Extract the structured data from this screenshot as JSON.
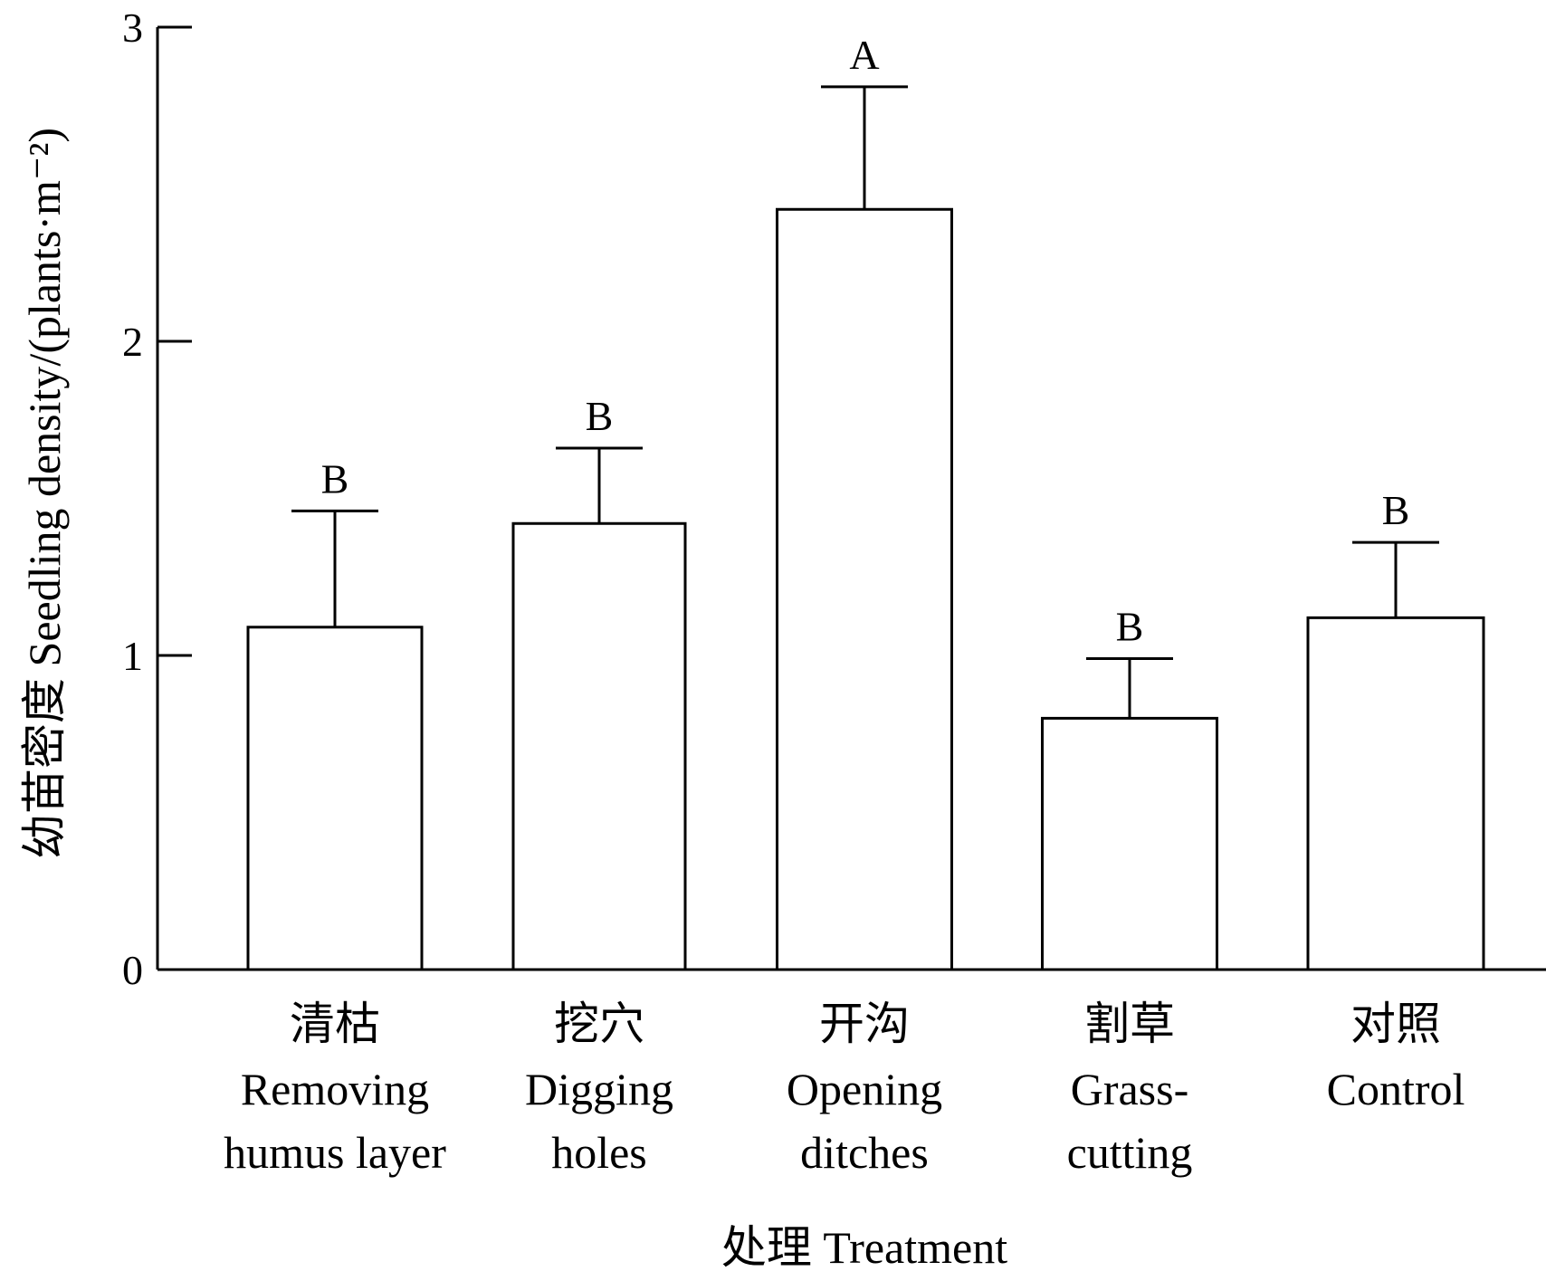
{
  "chart_data": {
    "type": "bar",
    "title": "",
    "ylabel": "幼苗密度  Seedling density/(plants·m⁻²)",
    "xlabel": "处理  Treatment",
    "ylim": [
      0,
      3
    ],
    "yticks": [
      0,
      1,
      2,
      3
    ],
    "categories": [
      {
        "zh": "清枯",
        "en": [
          "Removing",
          "humus layer"
        ]
      },
      {
        "zh": "挖穴",
        "en": [
          "Digging",
          "holes"
        ]
      },
      {
        "zh": "开沟",
        "en": [
          "Opening",
          "ditches"
        ]
      },
      {
        "zh": "割草",
        "en": [
          "Grass-",
          "cutting"
        ]
      },
      {
        "zh": "对照",
        "en": [
          "Control"
        ]
      }
    ],
    "values": [
      1.09,
      1.42,
      2.42,
      0.8,
      1.12
    ],
    "error_upper": [
      1.46,
      1.66,
      2.81,
      0.99,
      1.36
    ],
    "significance": [
      "B",
      "B",
      "A",
      "B",
      "B"
    ],
    "grid": false,
    "legend": "none"
  }
}
